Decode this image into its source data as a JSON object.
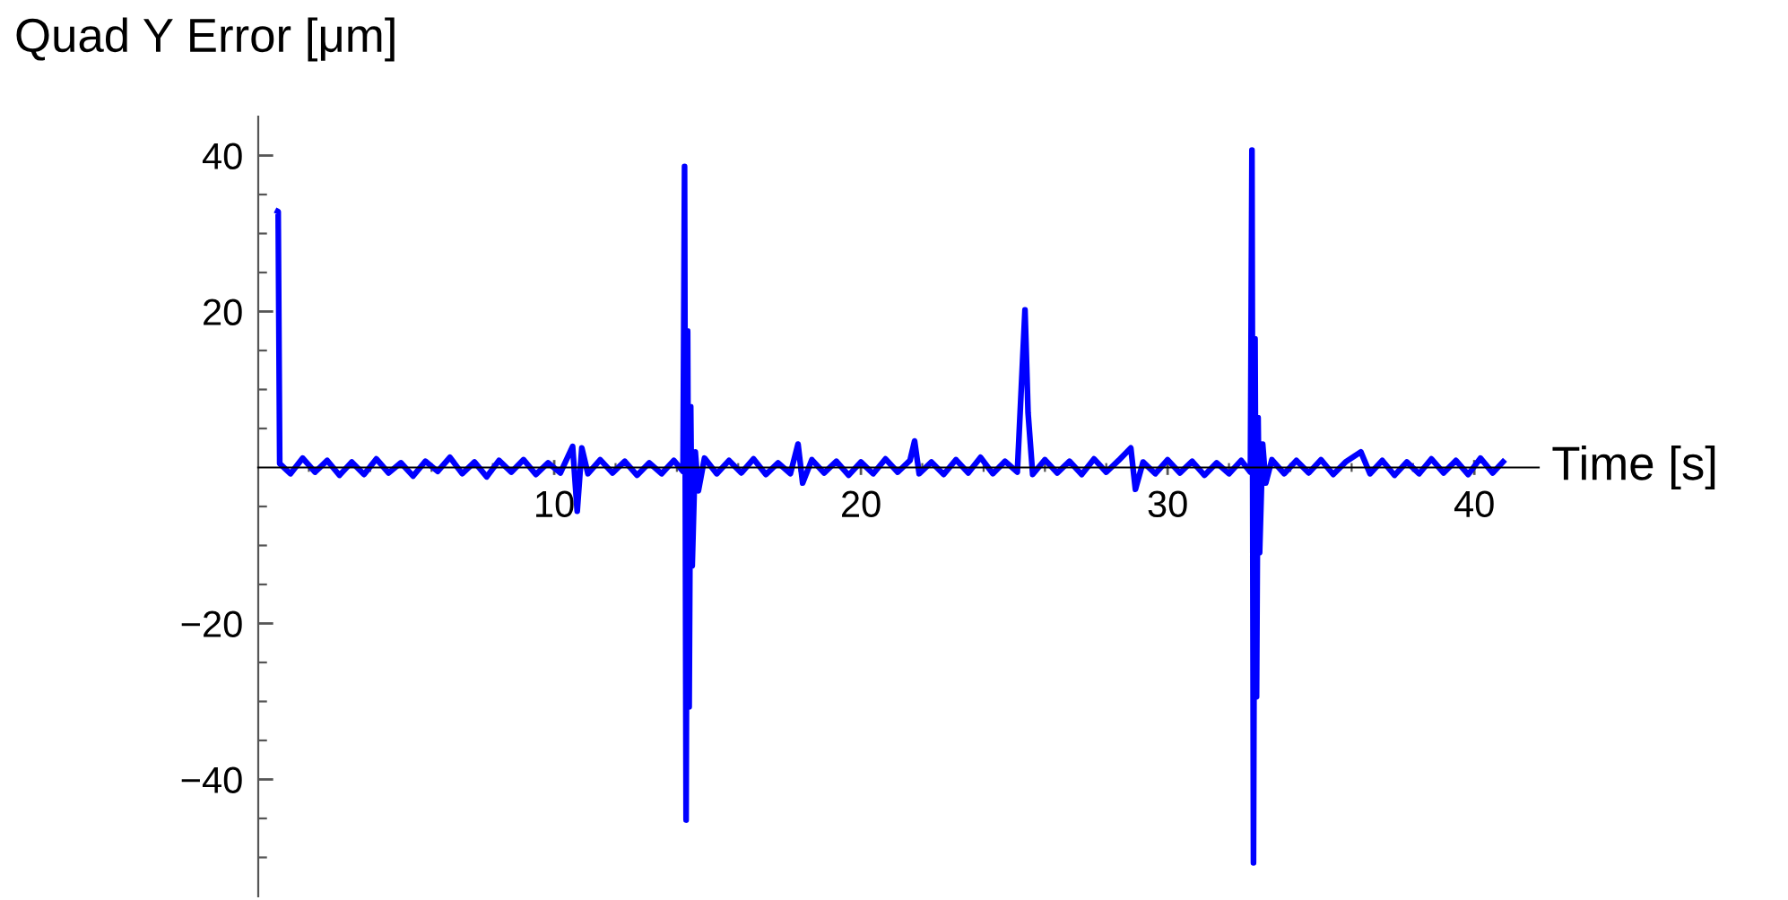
{
  "chart_data": {
    "type": "line",
    "xlabel": "Time [s]",
    "ylabel": "Quad Y Error [μm]",
    "xlim": [
      0.35,
      42.1
    ],
    "ylim": [
      -55,
      45
    ],
    "xticks": [
      {
        "value": 2,
        "label": null
      },
      {
        "value": 4,
        "label": null
      },
      {
        "value": 6,
        "label": null
      },
      {
        "value": 8,
        "label": null
      },
      10,
      {
        "value": 12,
        "label": null
      },
      {
        "value": 14,
        "label": null
      },
      {
        "value": 16,
        "label": null
      },
      {
        "value": 18,
        "label": null
      },
      20,
      {
        "value": 22,
        "label": null
      },
      {
        "value": 24,
        "label": null
      },
      {
        "value": 26,
        "label": null
      },
      {
        "value": 28,
        "label": null
      },
      30,
      {
        "value": 32,
        "label": null
      },
      {
        "value": 34,
        "label": null
      },
      {
        "value": 36,
        "label": null
      },
      {
        "value": 38,
        "label": null
      },
      40
    ],
    "yticks": [
      {
        "value": -50,
        "label": null
      },
      {
        "value": -45,
        "label": null
      },
      {
        "value": -40,
        "label": "−40"
      },
      {
        "value": -35,
        "label": null
      },
      {
        "value": -30,
        "label": null
      },
      {
        "value": -25,
        "label": null
      },
      {
        "value": -20,
        "label": "−20"
      },
      {
        "value": -15,
        "label": null
      },
      {
        "value": -10,
        "label": null
      },
      {
        "value": -5,
        "label": null
      },
      {
        "value": 5,
        "label": null
      },
      {
        "value": 10,
        "label": null
      },
      {
        "value": 15,
        "label": null
      },
      20,
      {
        "value": 25,
        "label": null
      },
      {
        "value": 30,
        "label": null
      },
      {
        "value": 35,
        "label": null
      },
      40
    ],
    "grid": false,
    "marker": "none",
    "line_style": "solid",
    "series": [
      {
        "color": "#0000ff",
        "x": [
          0.9,
          1.0,
          1.05,
          1.4,
          1.8,
          2.2,
          2.6,
          3.0,
          3.4,
          3.8,
          4.2,
          4.6,
          5.0,
          5.4,
          5.8,
          6.2,
          6.6,
          7.0,
          7.4,
          7.8,
          8.2,
          8.6,
          9.0,
          9.4,
          9.8,
          10.2,
          10.6,
          10.75,
          10.9,
          11.1,
          11.5,
          11.9,
          12.3,
          12.7,
          13.1,
          13.5,
          13.9,
          14.2,
          14.25,
          14.3,
          14.35,
          14.4,
          14.45,
          14.5,
          14.6,
          14.7,
          14.9,
          15.3,
          15.7,
          16.1,
          16.5,
          16.9,
          17.3,
          17.7,
          17.95,
          18.1,
          18.4,
          18.8,
          19.2,
          19.6,
          20.0,
          20.4,
          20.8,
          21.2,
          21.6,
          21.75,
          21.9,
          22.3,
          22.7,
          23.1,
          23.5,
          23.9,
          24.3,
          24.7,
          25.1,
          25.35,
          25.45,
          25.6,
          26.0,
          26.4,
          26.8,
          27.2,
          27.6,
          28.0,
          28.4,
          28.8,
          28.95,
          29.2,
          29.6,
          30.0,
          30.4,
          30.8,
          31.2,
          31.6,
          32.0,
          32.4,
          32.7,
          32.75,
          32.8,
          32.85,
          32.9,
          32.95,
          33.0,
          33.1,
          33.2,
          33.4,
          33.8,
          34.2,
          34.6,
          35.0,
          35.4,
          35.8,
          36.3,
          36.6,
          37.0,
          37.4,
          37.8,
          38.2,
          38.6,
          39.0,
          39.4,
          39.8,
          40.2,
          40.6,
          41.0
        ],
        "values": [
          33,
          32.8,
          0.5,
          -0.8,
          1.2,
          -0.6,
          0.9,
          -1.0,
          0.7,
          -0.9,
          1.1,
          -0.7,
          0.6,
          -1.1,
          0.8,
          -0.5,
          1.3,
          -0.8,
          0.7,
          -1.2,
          0.9,
          -0.6,
          1.0,
          -0.9,
          0.6,
          -0.7,
          2.7,
          -5.6,
          2.5,
          -0.8,
          1.0,
          -0.7,
          0.8,
          -1.0,
          0.6,
          -0.8,
          0.9,
          -0.5,
          38.6,
          -45.2,
          17.5,
          -30.7,
          7.8,
          -12.6,
          2.0,
          -3.0,
          1.2,
          -0.8,
          0.9,
          -0.7,
          1.1,
          -0.9,
          0.6,
          -0.8,
          3.0,
          -2.0,
          1.0,
          -0.7,
          0.8,
          -1.0,
          0.7,
          -0.8,
          1.1,
          -0.6,
          0.9,
          3.4,
          -0.8,
          0.7,
          -0.9,
          1.0,
          -0.7,
          1.3,
          -0.8,
          0.8,
          -0.6,
          20.2,
          7.0,
          -0.9,
          1.0,
          -0.7,
          0.8,
          -0.9,
          1.1,
          -0.6,
          0.9,
          2.5,
          -2.8,
          0.7,
          -0.8,
          1.0,
          -0.7,
          0.8,
          -1.0,
          0.6,
          -0.8,
          0.9,
          -0.6,
          40.7,
          -50.7,
          16.5,
          -29.4,
          6.4,
          -10.9,
          3.0,
          -2.0,
          1.0,
          -0.8,
          0.9,
          -0.7,
          1.0,
          -0.9,
          0.7,
          2.0,
          -0.8,
          0.9,
          -1.0,
          0.7,
          -0.8,
          1.1,
          -0.7,
          0.9,
          -0.9,
          1.2,
          -0.7,
          1.0
        ]
      }
    ]
  }
}
